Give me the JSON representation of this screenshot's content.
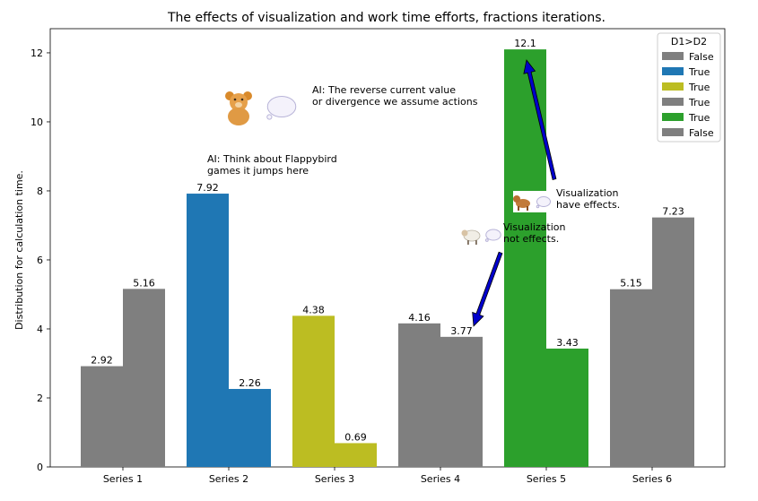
{
  "chart_data": {
    "type": "bar",
    "title": "The effects of visualization and work time efforts, fractions iterations.",
    "xlabel": "",
    "ylabel": "Distribution for calculation time.",
    "ylim": [
      0,
      12.7
    ],
    "yticks": [
      0,
      2,
      4,
      6,
      8,
      10,
      12
    ],
    "categories": [
      "Series 1",
      "Series 2",
      "Series 3",
      "Series 4",
      "Series 5",
      "Series 6"
    ],
    "series": [
      {
        "values": [
          2.92,
          7.92,
          4.38,
          4.16,
          12.1,
          5.15
        ]
      },
      {
        "values": [
          5.16,
          2.26,
          0.69,
          3.77,
          3.43,
          7.23
        ]
      }
    ],
    "bar_colors": [
      "#7f7f7f",
      "#1f77b4",
      "#bcbd22",
      "#7f7f7f",
      "#2ca02c",
      "#7f7f7f"
    ],
    "data_labels": [
      [
        "2.92",
        "5.16"
      ],
      [
        "7.92",
        "2.26"
      ],
      [
        "4.38",
        "0.69"
      ],
      [
        "4.16",
        "3.77"
      ],
      [
        "12.1",
        "3.43"
      ],
      [
        "5.15",
        "7.23"
      ]
    ],
    "legend": {
      "title": "D1>D2",
      "placement": "top-right",
      "entries": [
        {
          "label": "False",
          "color": "#7f7f7f"
        },
        {
          "label": "True",
          "color": "#1f77b4"
        },
        {
          "label": "True",
          "color": "#bcbd22"
        },
        {
          "label": "True",
          "color": "#7f7f7f"
        },
        {
          "label": "True",
          "color": "#2ca02c"
        },
        {
          "label": "False",
          "color": "#7f7f7f"
        }
      ]
    },
    "annotations": [
      {
        "lines": [
          "AI: The reverse current value",
          " or divergence we assume actions"
        ],
        "icons": [
          "teddy-bear-icon",
          "thought-bubble-icon"
        ]
      },
      {
        "lines": [
          "AI: Think about Flappybird",
          " games it jumps here"
        ],
        "icons": []
      },
      {
        "lines": [
          "Visualization",
          " have effects."
        ],
        "icons": [
          "dog-icon",
          "thought-bubble-icon"
        ],
        "arrow_to": {
          "category": "Series 5",
          "y": 12.1
        }
      },
      {
        "lines": [
          "Visualization",
          " not effects."
        ],
        "icons": [
          "sheep-icon",
          "thought-bubble-icon"
        ],
        "arrow_to": {
          "category": "Series 4",
          "y": 4.1
        }
      }
    ],
    "arrow_color": "#0000cc",
    "grid": false
  }
}
